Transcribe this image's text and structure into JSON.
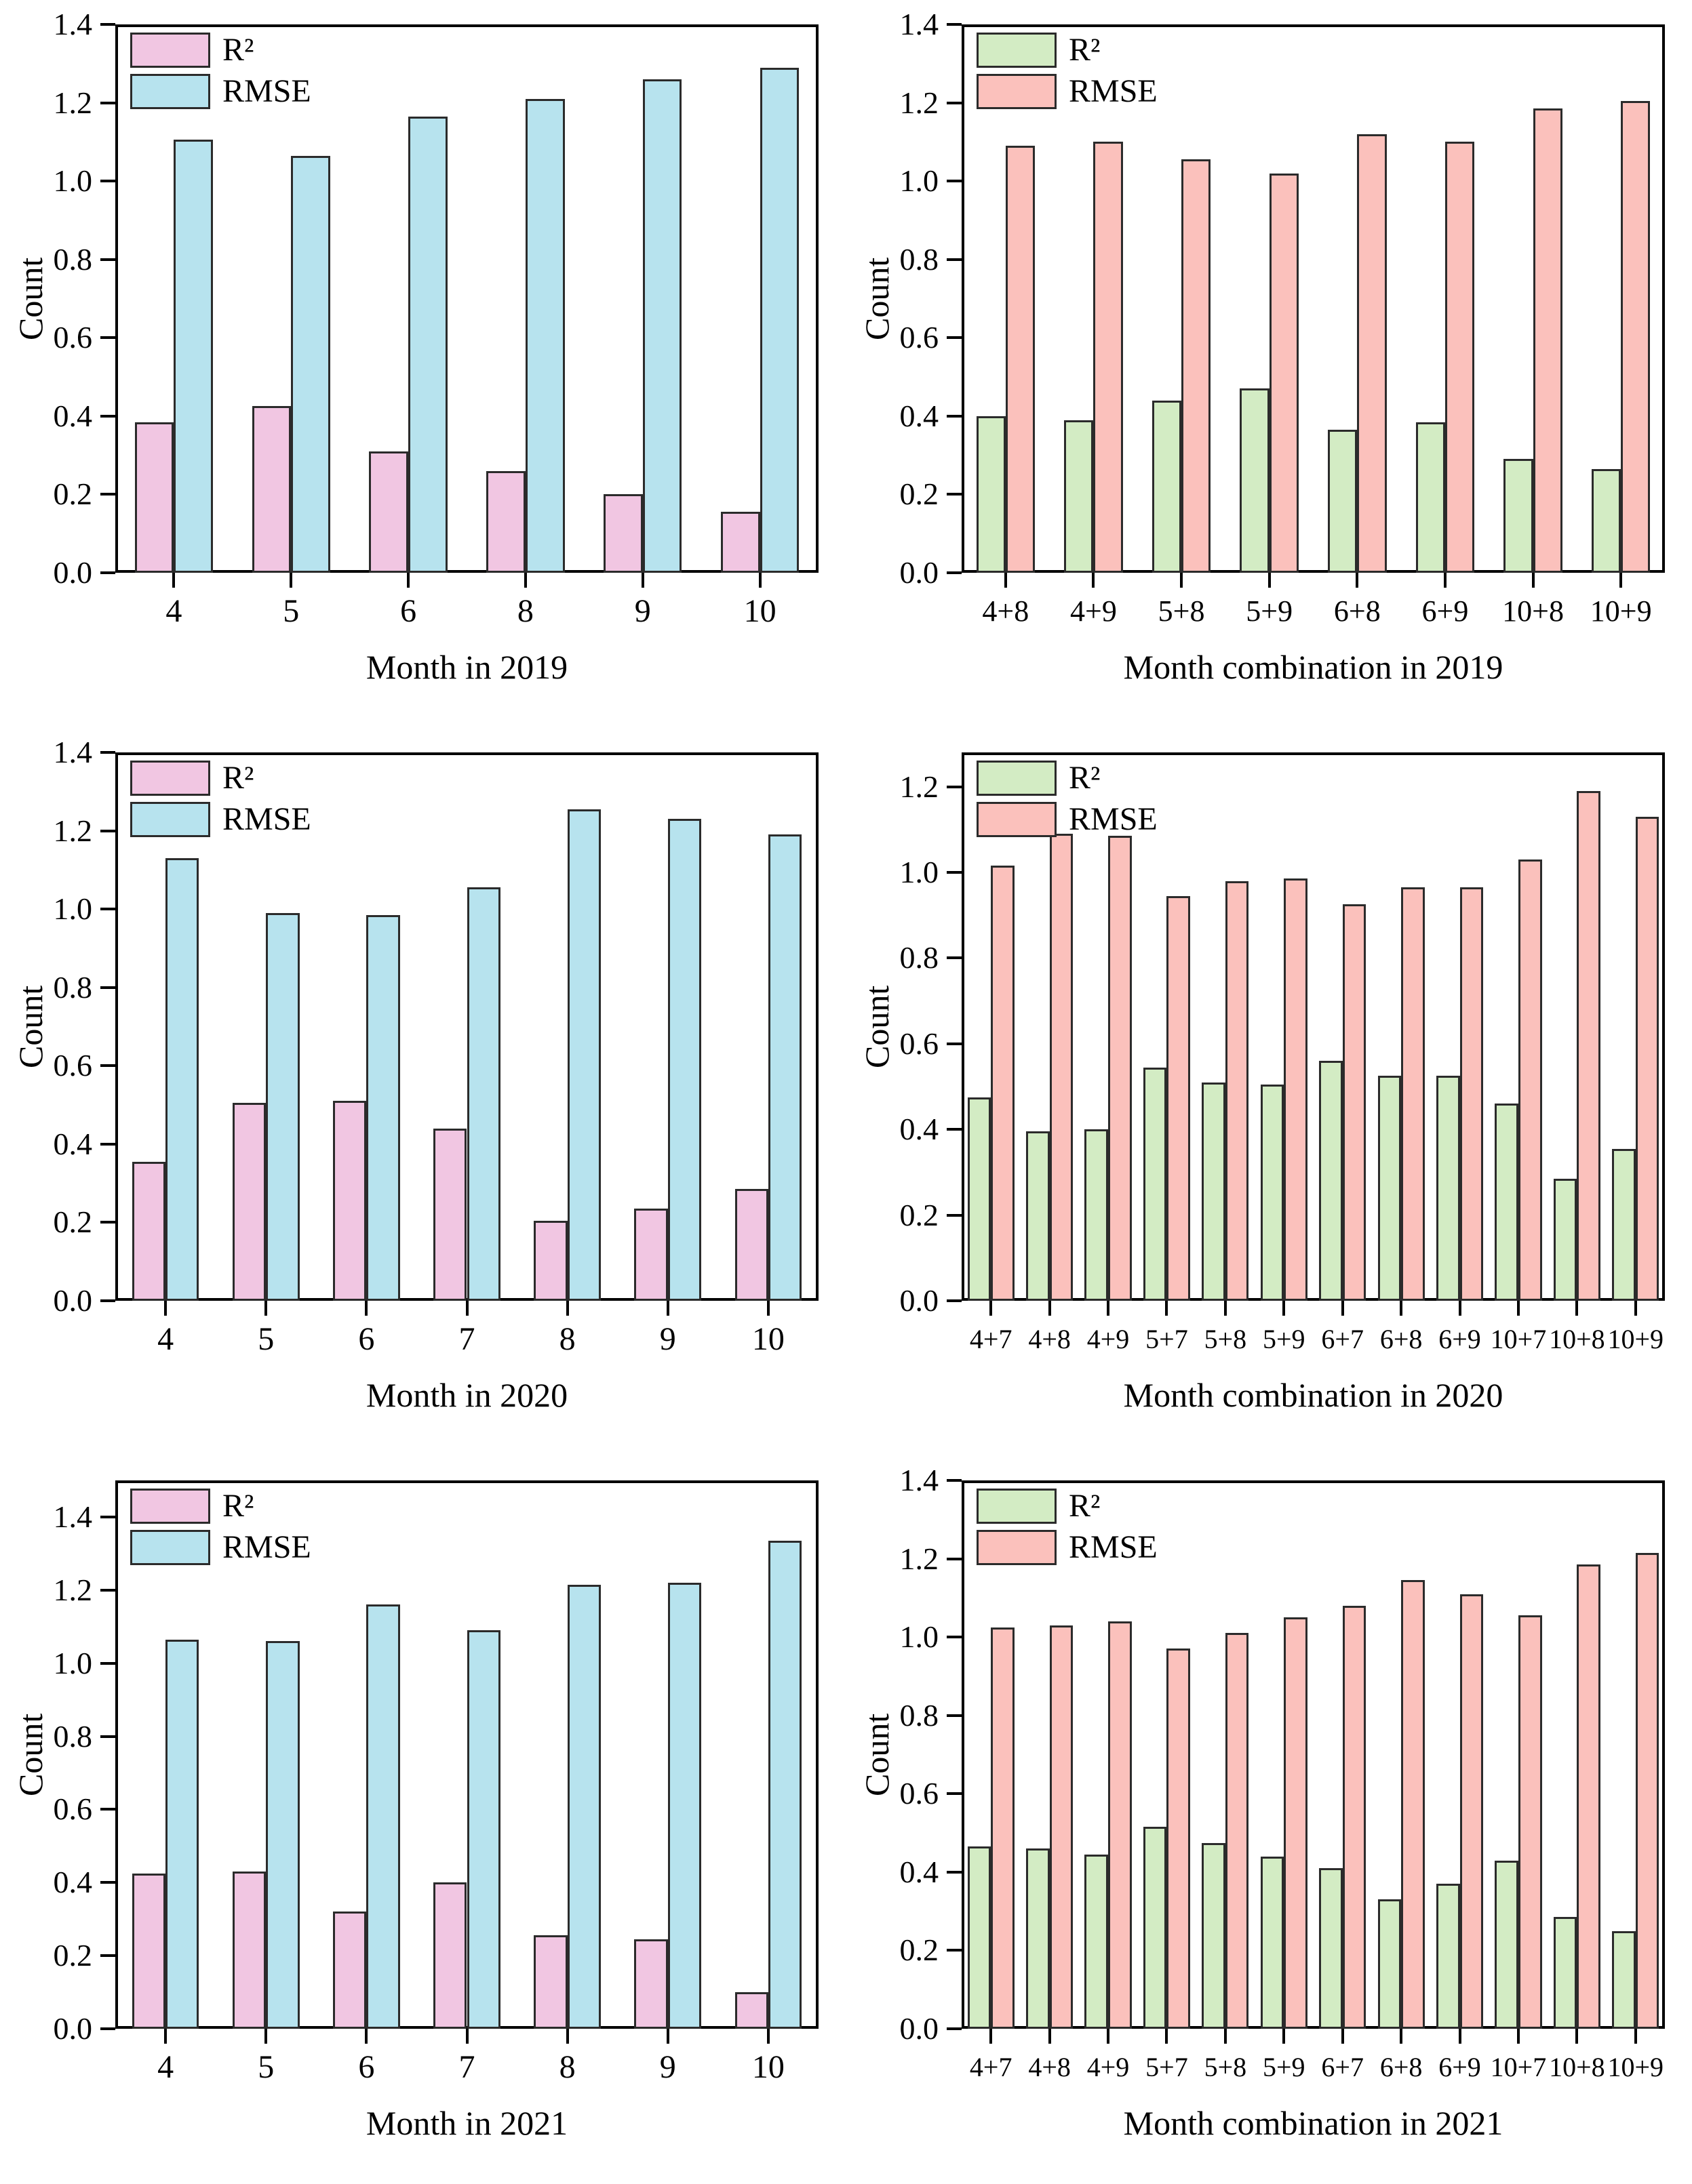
{
  "figure": {
    "ylabel": "Count",
    "legend_labels": [
      "R²",
      "RMSE"
    ],
    "colors": {
      "left_r2": "#F1C6E2",
      "left_rmse": "#B7E3EE",
      "right_r2": "#D3ECC4",
      "right_rmse": "#FBC1BC",
      "edge": "#2b2b2b",
      "axis": "#000000"
    }
  },
  "chart_data": [
    {
      "type": "bar",
      "panel": "top-left",
      "xlabel": "Month in 2019",
      "ylabel": "Count",
      "categories": [
        "4",
        "5",
        "6",
        "8",
        "9",
        "10"
      ],
      "series": [
        {
          "name": "R²",
          "color_key": "left_r2",
          "values": [
            0.385,
            0.425,
            0.31,
            0.26,
            0.2,
            0.155
          ]
        },
        {
          "name": "RMSE",
          "color_key": "left_rmse",
          "values": [
            1.105,
            1.065,
            1.165,
            1.21,
            1.26,
            1.29
          ]
        }
      ],
      "ylim": [
        0.0,
        1.4
      ],
      "yticks": [
        0.0,
        0.2,
        0.4,
        0.6,
        0.8,
        1.0,
        1.2,
        1.4
      ],
      "legend_position": "top-left",
      "grid": false
    },
    {
      "type": "bar",
      "panel": "top-right",
      "xlabel": "Month combination in 2019",
      "ylabel": "Count",
      "categories": [
        "4+8",
        "4+9",
        "5+8",
        "5+9",
        "6+8",
        "6+9",
        "10+8",
        "10+9"
      ],
      "series": [
        {
          "name": "R²",
          "color_key": "right_r2",
          "values": [
            0.4,
            0.39,
            0.44,
            0.47,
            0.365,
            0.385,
            0.29,
            0.265
          ]
        },
        {
          "name": "RMSE",
          "color_key": "right_rmse",
          "values": [
            1.09,
            1.1,
            1.055,
            1.02,
            1.12,
            1.1,
            1.185,
            1.205
          ]
        }
      ],
      "ylim": [
        0.0,
        1.4
      ],
      "yticks": [
        0.0,
        0.2,
        0.4,
        0.6,
        0.8,
        1.0,
        1.2,
        1.4
      ],
      "legend_position": "top-left",
      "grid": false
    },
    {
      "type": "bar",
      "panel": "middle-left",
      "xlabel": "Month in 2020",
      "ylabel": "Count",
      "categories": [
        "4",
        "5",
        "6",
        "7",
        "8",
        "9",
        "10"
      ],
      "series": [
        {
          "name": "R²",
          "color_key": "left_r2",
          "values": [
            0.355,
            0.505,
            0.51,
            0.44,
            0.205,
            0.235,
            0.285
          ]
        },
        {
          "name": "RMSE",
          "color_key": "left_rmse",
          "values": [
            1.13,
            0.99,
            0.985,
            1.055,
            1.255,
            1.23,
            1.19
          ]
        }
      ],
      "ylim": [
        0.0,
        1.4
      ],
      "yticks": [
        0.0,
        0.2,
        0.4,
        0.6,
        0.8,
        1.0,
        1.2,
        1.4
      ],
      "legend_position": "top-left",
      "grid": false
    },
    {
      "type": "bar",
      "panel": "middle-right",
      "xlabel": "Month combination in 2020",
      "ylabel": "Count",
      "categories": [
        "4+7",
        "4+8",
        "4+9",
        "5+7",
        "5+8",
        "5+9",
        "6+7",
        "6+8",
        "6+9",
        "10+7",
        "10+8",
        "10+9"
      ],
      "series": [
        {
          "name": "R²",
          "color_key": "right_r2",
          "values": [
            0.475,
            0.395,
            0.4,
            0.545,
            0.51,
            0.505,
            0.56,
            0.525,
            0.525,
            0.46,
            0.285,
            0.355
          ]
        },
        {
          "name": "RMSE",
          "color_key": "right_rmse",
          "values": [
            1.015,
            1.09,
            1.085,
            0.945,
            0.98,
            0.985,
            0.925,
            0.965,
            0.965,
            1.03,
            1.19,
            1.13
          ]
        }
      ],
      "ylim": [
        0.0,
        1.28
      ],
      "yticks": [
        0.0,
        0.2,
        0.4,
        0.6,
        0.8,
        1.0,
        1.2
      ],
      "legend_position": "top-left",
      "grid": false
    },
    {
      "type": "bar",
      "panel": "bottom-left",
      "xlabel": "Month in 2021",
      "ylabel": "Count",
      "categories": [
        "4",
        "5",
        "6",
        "7",
        "8",
        "9",
        "10"
      ],
      "series": [
        {
          "name": "R²",
          "color_key": "left_r2",
          "values": [
            0.425,
            0.43,
            0.32,
            0.4,
            0.255,
            0.245,
            0.1
          ]
        },
        {
          "name": "RMSE",
          "color_key": "left_rmse",
          "values": [
            1.065,
            1.06,
            1.16,
            1.09,
            1.215,
            1.22,
            1.335
          ]
        }
      ],
      "ylim": [
        0.0,
        1.5
      ],
      "yticks": [
        0.0,
        0.2,
        0.4,
        0.6,
        0.8,
        1.0,
        1.2,
        1.4
      ],
      "legend_position": "top-left",
      "grid": false
    },
    {
      "type": "bar",
      "panel": "bottom-right",
      "xlabel": "Month combination in 2021",
      "ylabel": "Count",
      "categories": [
        "4+7",
        "4+8",
        "4+9",
        "5+7",
        "5+8",
        "5+9",
        "6+7",
        "6+8",
        "6+9",
        "10+7",
        "10+8",
        "10+9"
      ],
      "series": [
        {
          "name": "R²",
          "color_key": "right_r2",
          "values": [
            0.465,
            0.46,
            0.445,
            0.515,
            0.475,
            0.44,
            0.41,
            0.33,
            0.37,
            0.43,
            0.285,
            0.25
          ]
        },
        {
          "name": "RMSE",
          "color_key": "right_rmse",
          "values": [
            1.025,
            1.03,
            1.04,
            0.97,
            1.01,
            1.05,
            1.08,
            1.145,
            1.11,
            1.055,
            1.185,
            1.215
          ]
        }
      ],
      "ylim": [
        0.0,
        1.4
      ],
      "yticks": [
        0.0,
        0.2,
        0.4,
        0.6,
        0.8,
        1.0,
        1.2,
        1.4
      ],
      "legend_position": "top-left",
      "grid": false
    }
  ]
}
